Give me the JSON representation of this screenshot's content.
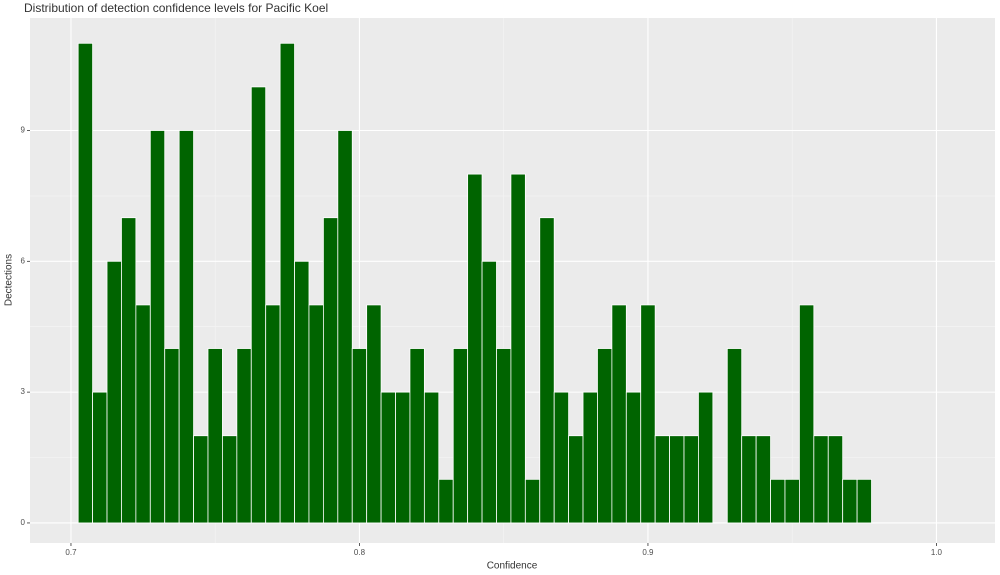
{
  "chart_data": {
    "type": "histogram",
    "title": "Distribution of detection confidence levels for Pacific Koel",
    "x_label": "Confidence",
    "y_label": "Dectections",
    "bins": [
      0.7025,
      0.7075,
      0.7125,
      0.7175,
      0.7225,
      0.7275,
      0.7325,
      0.7375,
      0.7425,
      0.7475,
      0.7525,
      0.7575,
      0.7625,
      0.7675,
      0.7725,
      0.7775,
      0.7825,
      0.7875,
      0.7925,
      0.7975,
      0.8025,
      0.8075,
      0.8125,
      0.8175,
      0.8225,
      0.8275,
      0.8325,
      0.8375,
      0.8425,
      0.8475,
      0.8525,
      0.8575,
      0.8625,
      0.8675,
      0.8725,
      0.8775,
      0.8825,
      0.8875,
      0.8925,
      0.8975,
      0.9025,
      0.9075,
      0.9125,
      0.9175,
      0.9225,
      0.9275,
      0.9325,
      0.9375,
      0.9425,
      0.9475,
      0.9525,
      0.9575,
      0.9625,
      0.9675,
      0.9725,
      0.9775
    ],
    "values": [
      11,
      3,
      6,
      7,
      5,
      9,
      4,
      9,
      2,
      4,
      2,
      4,
      10,
      5,
      11,
      6,
      5,
      7,
      9,
      4,
      5,
      3,
      3,
      4,
      3,
      1,
      4,
      8,
      6,
      4,
      8,
      1,
      7,
      3,
      2,
      3,
      4,
      5,
      3,
      5,
      2,
      2,
      2,
      3,
      0,
      4,
      2,
      2,
      1,
      1,
      5,
      2,
      2,
      1,
      1
    ],
    "color": "#006400",
    "xlim": [
      0.6858,
      1.0203
    ],
    "xticks": [
      0.7,
      0.8,
      0.9,
      {
        "value": 1.0,
        "label": "1.0"
      }
    ],
    "ylim": [
      -0.46,
      11.58
    ],
    "yticks": [
      0,
      3,
      6,
      9
    ],
    "grid": true
  }
}
